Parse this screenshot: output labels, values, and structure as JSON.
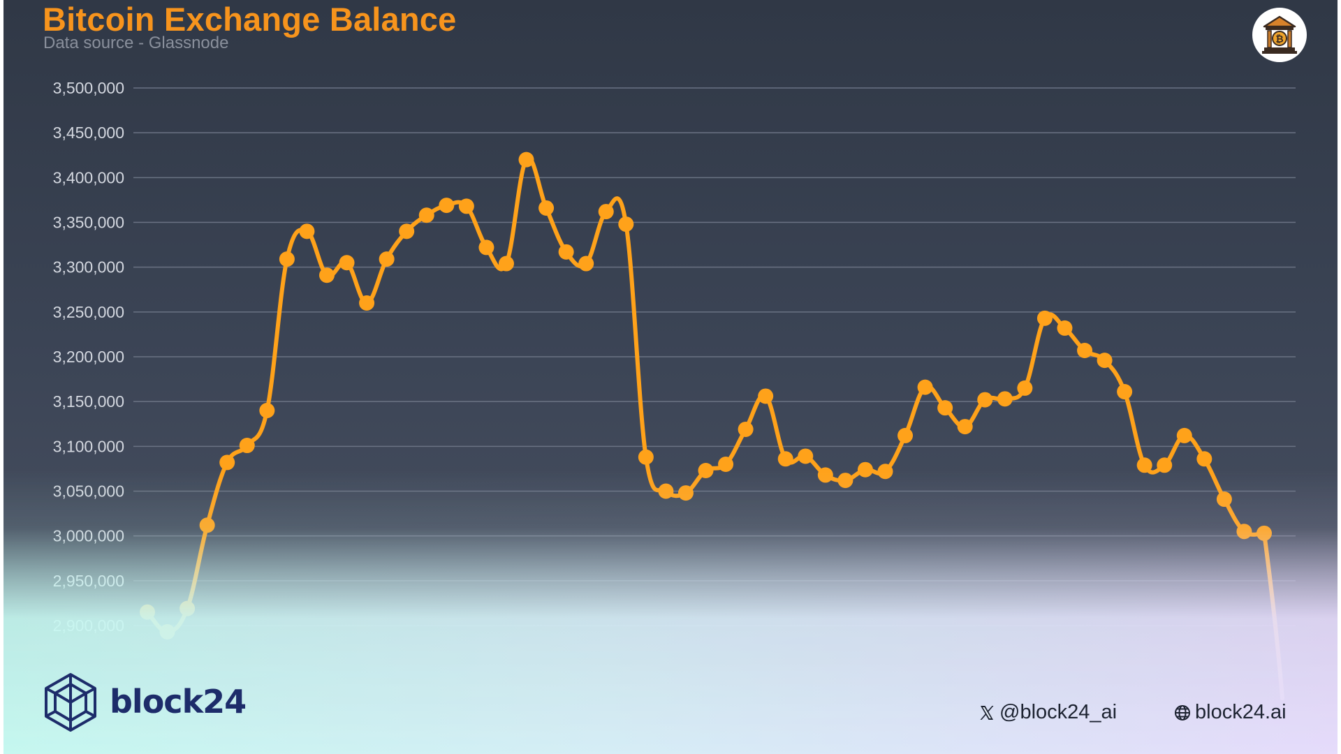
{
  "header": {
    "title": "Bitcoin Exchange Balance",
    "subtitle": "Data source - Glassnode"
  },
  "footer": {
    "brand": "block24",
    "x_handle": "@block24_ai",
    "website": "block24.ai"
  },
  "icons": {
    "badge": "bank-bitcoin-icon",
    "logo": "cube-logo-icon",
    "x": "x-logo-icon",
    "web": "globe-icon"
  },
  "colors": {
    "accent": "#f7941d",
    "line": "#ffa21a",
    "background": "#3a4254",
    "grid": "#6b7384",
    "tick_text": "#d4d8e0",
    "brand_text": "#1d2c6a"
  },
  "chart_data": {
    "type": "line",
    "title": "Bitcoin Exchange Balance",
    "subtitle": "Data source - Glassnode",
    "xlabel": "",
    "ylabel": "",
    "ylim": [
      2900000,
      3500000
    ],
    "y_ticks": [
      3500000,
      3450000,
      3400000,
      3350000,
      3300000,
      3250000,
      3200000,
      3150000,
      3100000,
      3050000,
      3000000,
      2950000,
      2900000
    ],
    "y_tick_labels": [
      "3,500,000",
      "3,450,000",
      "3,400,000",
      "3,350,000",
      "3,300,000",
      "3,250,000",
      "3,200,000",
      "3,150,000",
      "3,100,000",
      "3,050,000",
      "3,000,000",
      "2,950,000",
      "2,900,000"
    ],
    "grid": true,
    "legend": "none",
    "series": [
      {
        "values": [
          2915000,
          2893000,
          2919000,
          3012000,
          3082000,
          3101000,
          3140000,
          3309000,
          3340000,
          3291000,
          3305000,
          3260000,
          3309000,
          3340000,
          3358000,
          3369000,
          3368000,
          3322000,
          3304000,
          3420000,
          3366000,
          3317000,
          3304000,
          3362000,
          3348000,
          3088000,
          3050000,
          3048000,
          3073000,
          3080000,
          3119000,
          3156000,
          3086000,
          3089000,
          3068000,
          3062000,
          3074000,
          3072000,
          3112000,
          3166000,
          3143000,
          3122000,
          3152000,
          3153000,
          3165000,
          3243000,
          3232000,
          3207000,
          3196000,
          3161000,
          3079000,
          3079000,
          3112000,
          3086000,
          3041000,
          3005000,
          3003000
        ]
      }
    ]
  }
}
